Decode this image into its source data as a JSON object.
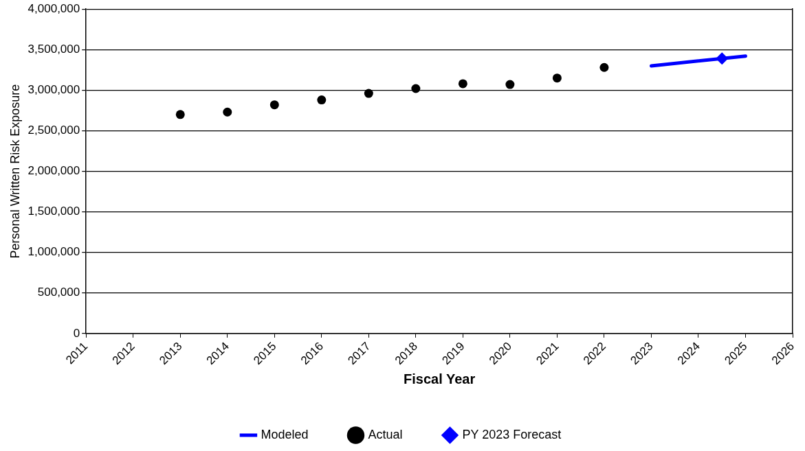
{
  "chart_data": {
    "type": "scatter",
    "xlabel": "Fiscal Year",
    "ylabel": "Personal Written Risk Exposure",
    "xlim": [
      2011,
      2026
    ],
    "xticks": [
      2011,
      2012,
      2013,
      2014,
      2015,
      2016,
      2017,
      2018,
      2019,
      2020,
      2021,
      2022,
      2023,
      2024,
      2025,
      2026
    ],
    "ylim": [
      0,
      4000000
    ],
    "yticks": [
      0,
      {
        "value": 500000,
        "label": "500,000"
      },
      {
        "value": 1000000,
        "label": "1,000,000"
      },
      {
        "value": 1500000,
        "label": "1,500,000"
      },
      {
        "value": 2000000,
        "label": "2,000,000"
      },
      {
        "value": 2500000,
        "label": "2,500,000"
      },
      {
        "value": 3000000,
        "label": "3,000,000"
      },
      {
        "value": 3500000,
        "label": "3,500,000"
      },
      {
        "value": 4000000,
        "label": "4,000,000"
      }
    ],
    "grid": "y",
    "legend": "bottom",
    "series": [
      {
        "name": "Modeled",
        "type": "line",
        "color": "#0000ff",
        "marker": "none",
        "line_style": "solid",
        "x": [
          2023,
          2025
        ],
        "values": [
          3300000,
          3420000
        ]
      },
      {
        "name": "Actual",
        "type": "scatter",
        "color": "#000000",
        "marker": "circle",
        "x": [
          2013,
          2014,
          2015,
          2016,
          2017,
          2018,
          2019,
          2020,
          2021,
          2022
        ],
        "values": [
          2700000,
          2730000,
          2820000,
          2880000,
          2960000,
          3020000,
          3080000,
          3070000,
          3150000,
          3280000
        ]
      },
      {
        "name": "PY 2023 Forecast",
        "type": "scatter",
        "color": "#0000ff",
        "marker": "diamond",
        "x": [
          2024.5
        ],
        "values": [
          3390000
        ]
      }
    ]
  }
}
